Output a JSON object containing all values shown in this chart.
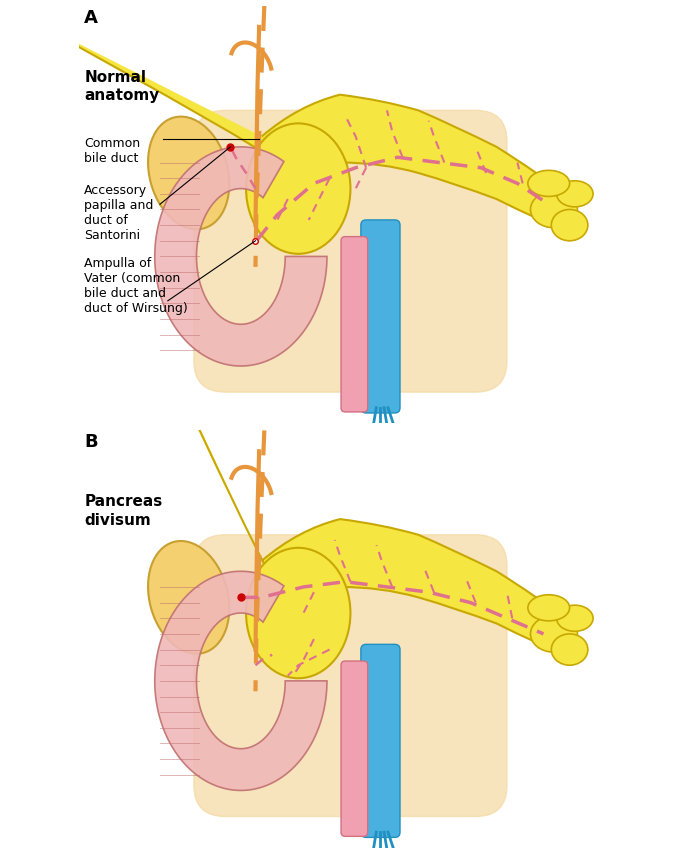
{
  "bg_color": "#ffffff",
  "pancreas_fill": "#f5e642",
  "pancreas_edge": "#c8a800",
  "duodenum_fill": "#f0b8b8",
  "duodenum_edge": "#c07070",
  "gallbladder_fill": "#f5d070",
  "gallbladder_edge": "#c8a030",
  "bile_duct_color": "#e8963c",
  "duct_pink": "#e07090",
  "vessel_blue": "#4ab0e0",
  "vessel_pink": "#f0a0b0",
  "retroperitoneum_fill": "#f5d8a0",
  "label_A": "A",
  "label_B": "B",
  "title_A": "Normal\nanatomy",
  "title_B": "Pancreas\ndivisum",
  "label_cbd": "Common\nbile duct",
  "label_accessory": "Accessory\npapilla and\nduct of\nSantorini",
  "label_ampulla": "Ampulla of\nVater (common\nbile duct and\nduct of Wirsung)",
  "fig_width": 6.8,
  "fig_height": 8.53
}
